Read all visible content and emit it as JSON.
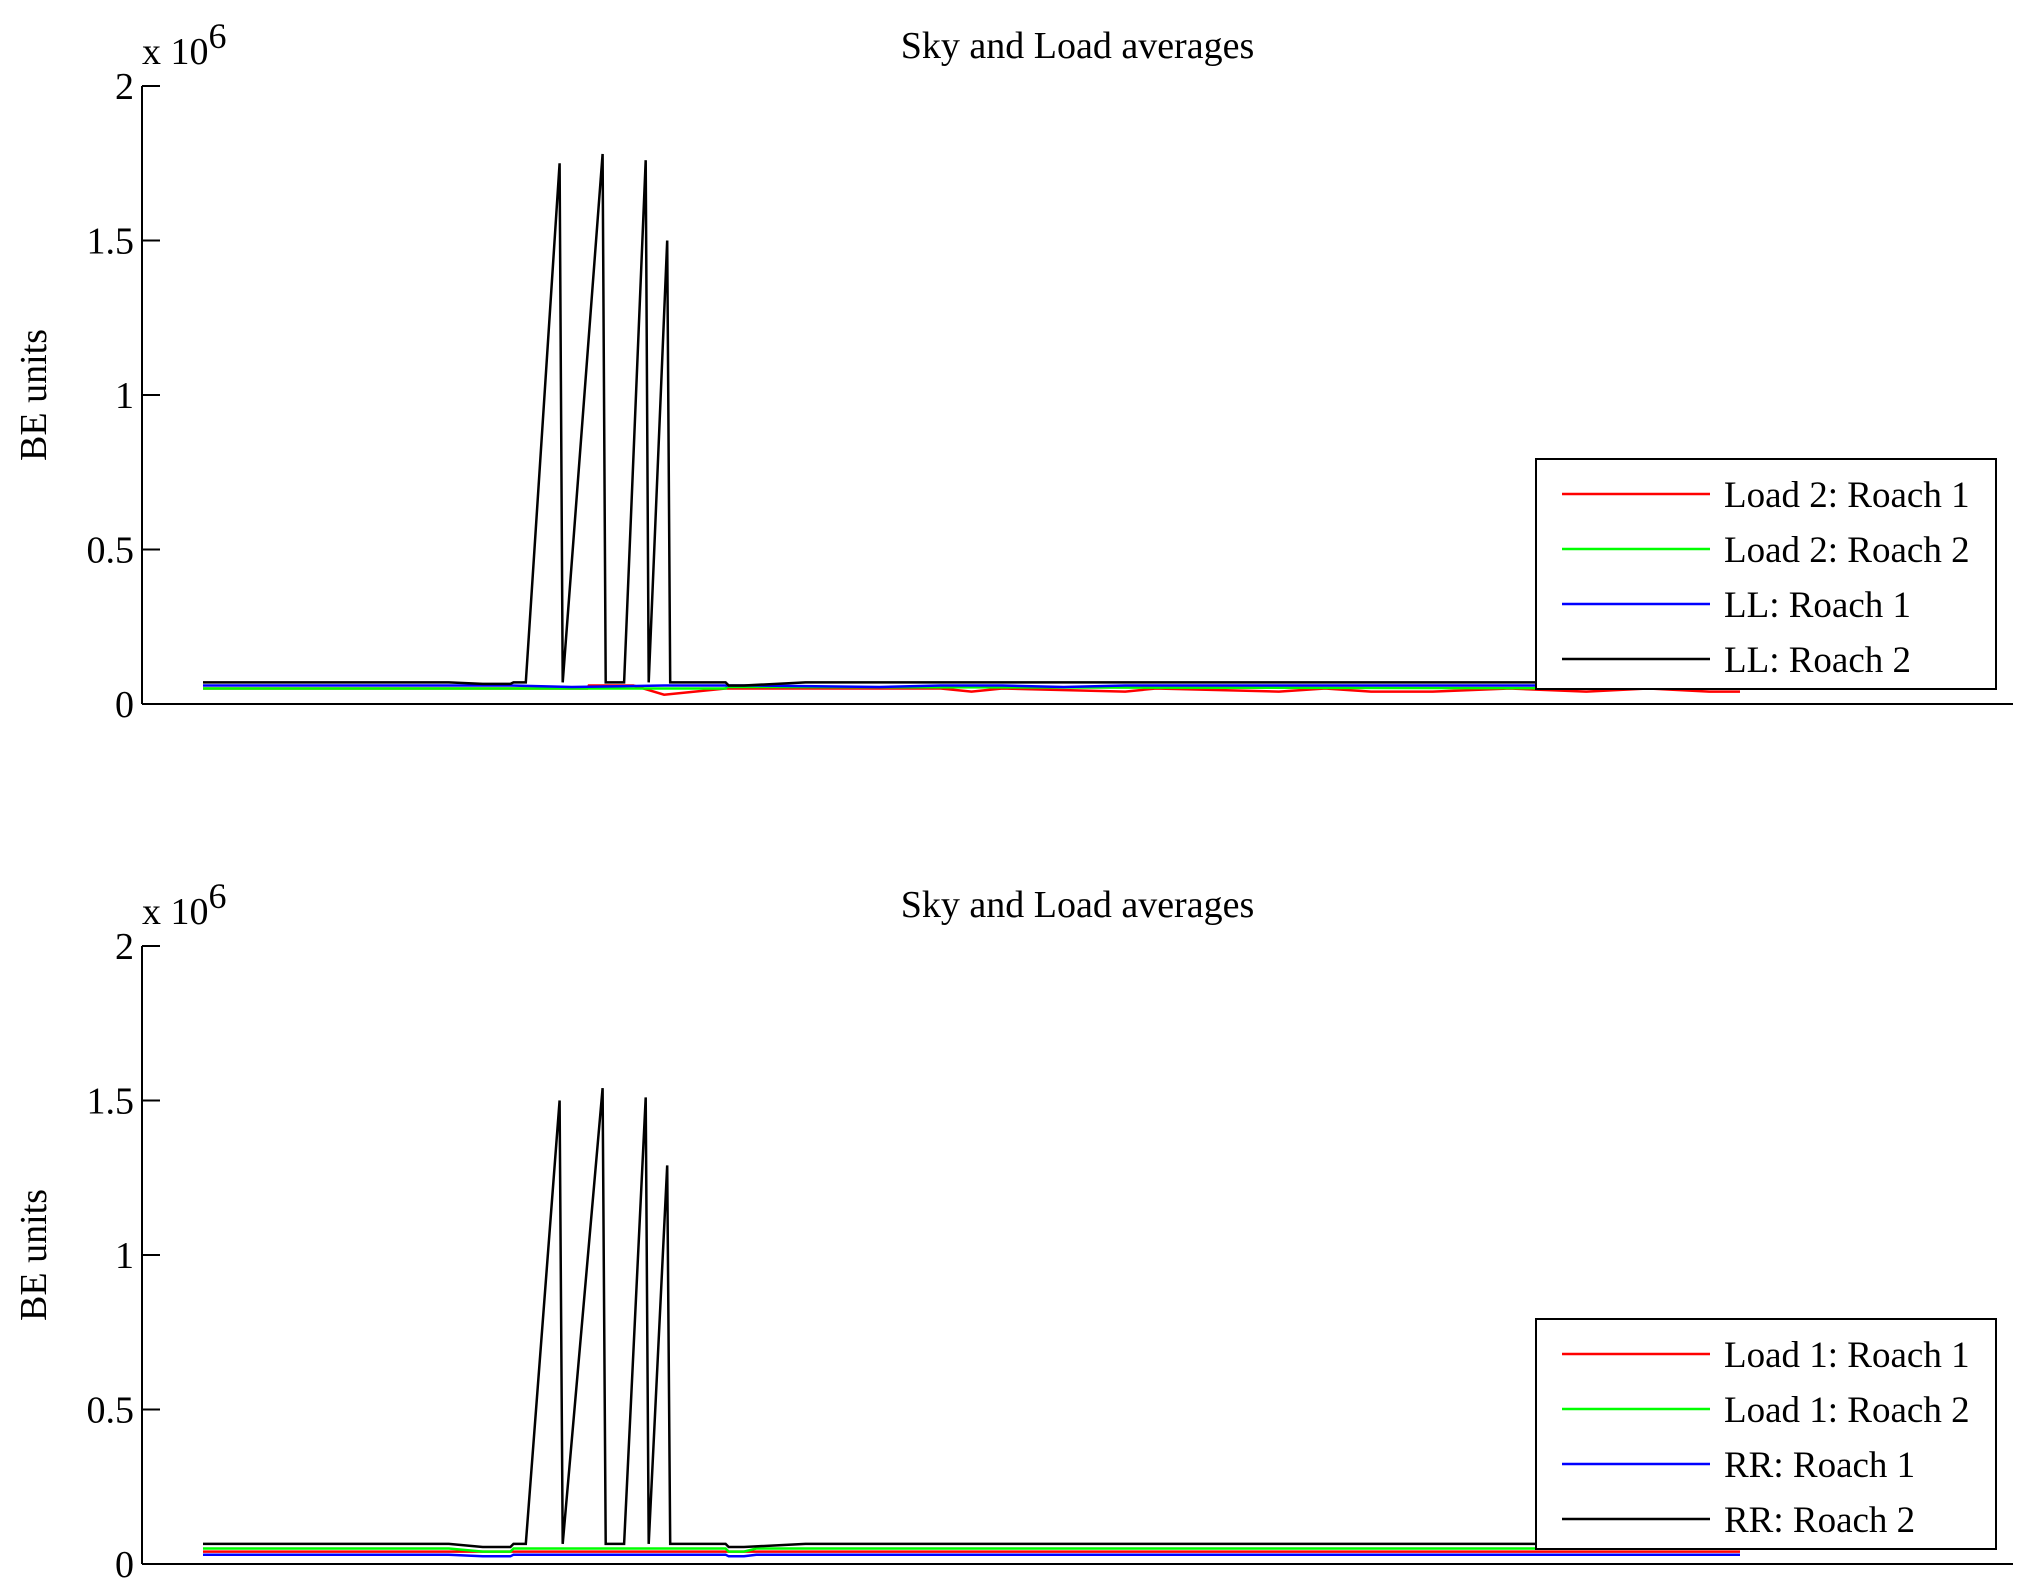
{
  "chart_data": [
    {
      "type": "line",
      "title": "Sky and Load averages",
      "ylabel": "BE units",
      "xlabel": "",
      "y_multiplier_label": "x 10",
      "y_multiplier_exponent": "6",
      "ylim": [
        0,
        2
      ],
      "yticks": [
        0,
        0.5,
        1,
        1.5,
        2
      ],
      "ytick_labels": [
        "0",
        "0.5",
        "1",
        "1.5",
        "2"
      ],
      "xticks_shown": false,
      "x_range": [
        0,
        1000
      ],
      "grid": false,
      "legend_position": "bottom-right",
      "series": [
        {
          "name": "Load 2: Roach 1",
          "color": "#ff0000",
          "x": [
            0,
            250,
            251,
            280,
            300,
            340,
            480,
            500,
            520,
            600,
            620,
            700,
            730,
            760,
            800,
            850,
            900,
            940,
            980,
            1000
          ],
          "y": [
            0.05,
            0.05,
            0.06,
            0.06,
            0.03,
            0.05,
            0.05,
            0.04,
            0.05,
            0.04,
            0.05,
            0.04,
            0.05,
            0.04,
            0.04,
            0.05,
            0.04,
            0.05,
            0.04,
            0.04
          ]
        },
        {
          "name": "Load 2: Roach 2",
          "color": "#00ff00",
          "x": [
            0,
            340,
            341,
            1000
          ],
          "y": [
            0.05,
            0.05,
            0.055,
            0.05
          ]
        },
        {
          "name": "LL: Roach 1",
          "color": "#0000ff",
          "x": [
            0,
            200,
            240,
            300,
            340,
            360,
            440,
            480,
            520,
            560,
            600,
            640,
            680,
            720,
            760,
            800,
            840,
            880,
            920,
            960,
            1000
          ],
          "y": [
            0.06,
            0.06,
            0.055,
            0.06,
            0.06,
            0.06,
            0.055,
            0.06,
            0.06,
            0.055,
            0.06,
            0.06,
            0.06,
            0.06,
            0.06,
            0.06,
            0.06,
            0.06,
            0.06,
            0.06,
            0.06
          ]
        },
        {
          "name": "LL: Roach 2",
          "color": "#000000",
          "x": [
            0,
            160,
            182,
            200,
            202,
            210,
            232,
            234,
            260,
            262,
            274,
            288,
            290,
            302,
            304,
            340,
            342,
            352,
            392,
            1000
          ],
          "y": [
            0.07,
            0.07,
            0.065,
            0.065,
            0.07,
            0.07,
            1.75,
            0.07,
            1.78,
            0.07,
            0.07,
            1.76,
            0.07,
            1.5,
            0.07,
            0.07,
            0.06,
            0.06,
            0.07,
            0.07
          ]
        }
      ]
    },
    {
      "type": "line",
      "title": "Sky and Load averages",
      "ylabel": "BE units",
      "xlabel": "",
      "y_multiplier_label": "x 10",
      "y_multiplier_exponent": "6",
      "ylim": [
        0,
        2
      ],
      "yticks": [
        0,
        0.5,
        1,
        1.5,
        2
      ],
      "ytick_labels": [
        "0",
        "0.5",
        "1",
        "1.5",
        "2"
      ],
      "xticks_shown": false,
      "x_range": [
        0,
        1000
      ],
      "grid": false,
      "legend_position": "bottom-right",
      "series": [
        {
          "name": "Load 1: Roach 1",
          "color": "#ff0000",
          "x": [
            0,
            1000
          ],
          "y": [
            0.04,
            0.04
          ]
        },
        {
          "name": "Load 1: Roach 2",
          "color": "#00ff00",
          "x": [
            0,
            160,
            182,
            200,
            202,
            340,
            342,
            352,
            360,
            1000
          ],
          "y": [
            0.05,
            0.05,
            0.04,
            0.04,
            0.05,
            0.05,
            0.04,
            0.04,
            0.05,
            0.05
          ]
        },
        {
          "name": "RR: Roach 1",
          "color": "#0000ff",
          "x": [
            0,
            160,
            182,
            200,
            202,
            340,
            342,
            352,
            360,
            1000
          ],
          "y": [
            0.03,
            0.03,
            0.025,
            0.025,
            0.03,
            0.03,
            0.025,
            0.025,
            0.03,
            0.03
          ]
        },
        {
          "name": "RR: Roach 2",
          "color": "#000000",
          "x": [
            0,
            160,
            182,
            200,
            202,
            210,
            232,
            234,
            260,
            262,
            274,
            288,
            290,
            302,
            304,
            340,
            342,
            352,
            392,
            1000
          ],
          "y": [
            0.065,
            0.065,
            0.055,
            0.055,
            0.065,
            0.065,
            1.5,
            0.065,
            1.54,
            0.065,
            0.065,
            1.51,
            0.065,
            1.29,
            0.065,
            0.065,
            0.055,
            0.055,
            0.065,
            0.065
          ]
        }
      ]
    }
  ]
}
